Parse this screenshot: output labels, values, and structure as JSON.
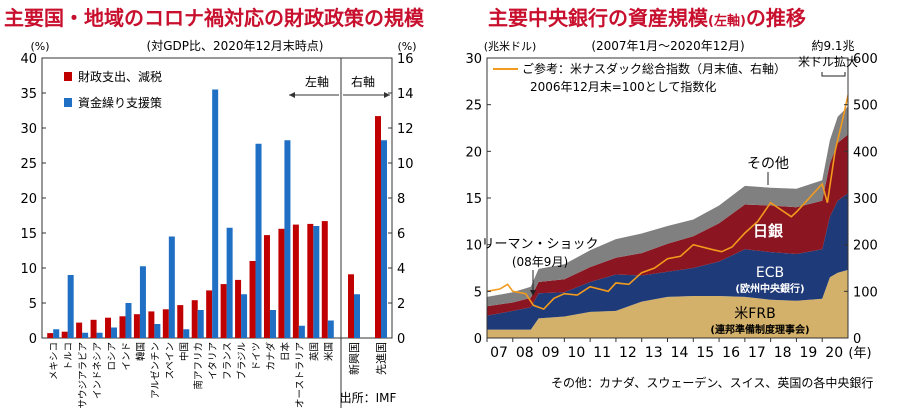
{
  "left_title": "主要国・地域のコロナ禍対応の財政政策の規模",
  "right_title_main": "主要中央銀行の資産規模",
  "right_title_small": "(左軸)",
  "right_title_tail": "の推移",
  "chart_data": [
    {
      "type": "bar",
      "subtitle": "(対GDP比、2020年12月末時点)",
      "ylabel_left": "(%)",
      "ylabel_right": "(%)",
      "ylim_left": [
        0,
        40
      ],
      "ylim_right": [
        0,
        16
      ],
      "yticks_left": [
        "0",
        "5",
        "10",
        "15",
        "20",
        "25",
        "30",
        "35",
        "40"
      ],
      "yticks_right": [
        "0",
        "2",
        "4",
        "6",
        "8",
        "10",
        "12",
        "14",
        "16"
      ],
      "categories": [
        "メキシコ",
        "トルコ",
        "サウジアラビア",
        "インドネシア",
        "ロシア",
        "インド",
        "韓国",
        "アルゼンチン",
        "スペイン",
        "中国",
        "南アフリカ",
        "イタリア",
        "フランス",
        "ブラジル",
        "ドイツ",
        "カナダ",
        "日本",
        "オーストラリア",
        "英国",
        "米国",
        "新興国",
        "先進国"
      ],
      "series": [
        {
          "name": "財政支出、減税",
          "color": "#c00000",
          "axis": "left",
          "values": [
            0.7,
            0.9,
            2.2,
            2.6,
            2.9,
            3.1,
            3.4,
            3.8,
            4.1,
            4.7,
            5.4,
            6.8,
            7.7,
            8.3,
            11.0,
            14.7,
            15.6,
            16.2,
            16.3,
            16.7,
            9.1,
            31.7
          ]
        },
        {
          "name": "資金繰り支援策",
          "color": "#1f6fc5",
          "axis": "right",
          "values": [
            0.5,
            3.6,
            0.3,
            0.3,
            0.6,
            2.0,
            4.1,
            0.8,
            5.8,
            0.5,
            1.6,
            14.2,
            6.3,
            2.5,
            11.1,
            1.6,
            11.3,
            0.7,
            6.4,
            1.0,
            2.5,
            11.3
          ]
        }
      ],
      "axis_notes": {
        "left": "左軸",
        "right": "右軸"
      },
      "source": "出所：IMF"
    },
    {
      "type": "area",
      "subtitle": "(2007年1月～2020年12月)",
      "ylabel_left": "(兆米ドル)",
      "ylim_left": [
        0,
        30
      ],
      "ylim_right": [
        0,
        600
      ],
      "yticks_left": [
        "0",
        "5",
        "10",
        "15",
        "20",
        "25",
        "30"
      ],
      "yticks_right": [
        "0",
        "100",
        "200",
        "300",
        "400",
        "500",
        "600"
      ],
      "x_ticks": [
        "07",
        "08",
        "09",
        "10",
        "11",
        "12",
        "13",
        "14",
        "15",
        "16",
        "17",
        "18",
        "19",
        "20"
      ],
      "x_unit": "(年)",
      "x": [
        2007,
        2008,
        2008.7,
        2009,
        2010,
        2011,
        2012,
        2013,
        2014,
        2015,
        2016,
        2017,
        2018,
        2019,
        2020,
        2020.3,
        2020.6,
        2021
      ],
      "series": [
        {
          "name": "米FRB",
          "sub": "(連邦準備制度理事会)",
          "color": "#d4b16a",
          "values": [
            0.9,
            0.9,
            0.9,
            2.1,
            2.3,
            2.8,
            2.9,
            3.9,
            4.4,
            4.5,
            4.5,
            4.4,
            4.1,
            4.0,
            4.2,
            6.5,
            7.0,
            7.3
          ]
        },
        {
          "name": "ECB",
          "sub": "(欧州中央銀行)",
          "color": "#1f3a78",
          "values": [
            1.5,
            2.0,
            2.4,
            2.7,
            2.6,
            3.2,
            3.9,
            2.8,
            2.7,
            3.0,
            3.7,
            5.1,
            5.1,
            5.0,
            5.3,
            6.5,
            7.7,
            8.2
          ]
        },
        {
          "name": "日銀",
          "color": "#8b1520",
          "values": [
            1.0,
            0.9,
            1.0,
            1.2,
            1.4,
            1.6,
            1.8,
            2.4,
            3.0,
            3.4,
            4.1,
            4.8,
            5.0,
            5.0,
            5.2,
            5.7,
            6.2,
            6.3
          ]
        },
        {
          "name": "その他",
          "color": "#808080",
          "values": [
            1.0,
            1.1,
            1.2,
            1.4,
            1.6,
            1.8,
            2.0,
            2.1,
            1.9,
            1.8,
            1.9,
            2.0,
            1.9,
            2.0,
            2.2,
            2.5,
            2.8,
            3.0
          ]
        }
      ],
      "line": {
        "name": "ご参考：米ナスダック総合指数（月末値、右軸）",
        "note": "2006年12月末=100として指数化",
        "color": "#f29a1d",
        "x": [
          2007,
          2007.5,
          2007.8,
          2008,
          2008.5,
          2008.8,
          2009.2,
          2009.6,
          2010,
          2010.5,
          2011,
          2011.7,
          2012,
          2012.5,
          2013,
          2013.5,
          2014,
          2014.5,
          2015,
          2015.7,
          2016.1,
          2016.5,
          2017,
          2017.5,
          2018,
          2018.8,
          2019,
          2019.5,
          2020,
          2020.2,
          2020.5,
          2020.8,
          2021
        ],
        "values": [
          100,
          105,
          115,
          100,
          95,
          70,
          62,
          85,
          95,
          92,
          110,
          100,
          118,
          115,
          140,
          150,
          170,
          175,
          200,
          190,
          185,
          195,
          225,
          250,
          290,
          260,
          270,
          300,
          330,
          290,
          400,
          470,
          520
        ]
      },
      "annotations": [
        "リーマン・ショック",
        "(08年9月)",
        "約9.1兆",
        "米ドル拡大"
      ],
      "footnote": "その他：カナダ、スウェーデン、スイス、英国の各中央銀行"
    }
  ]
}
